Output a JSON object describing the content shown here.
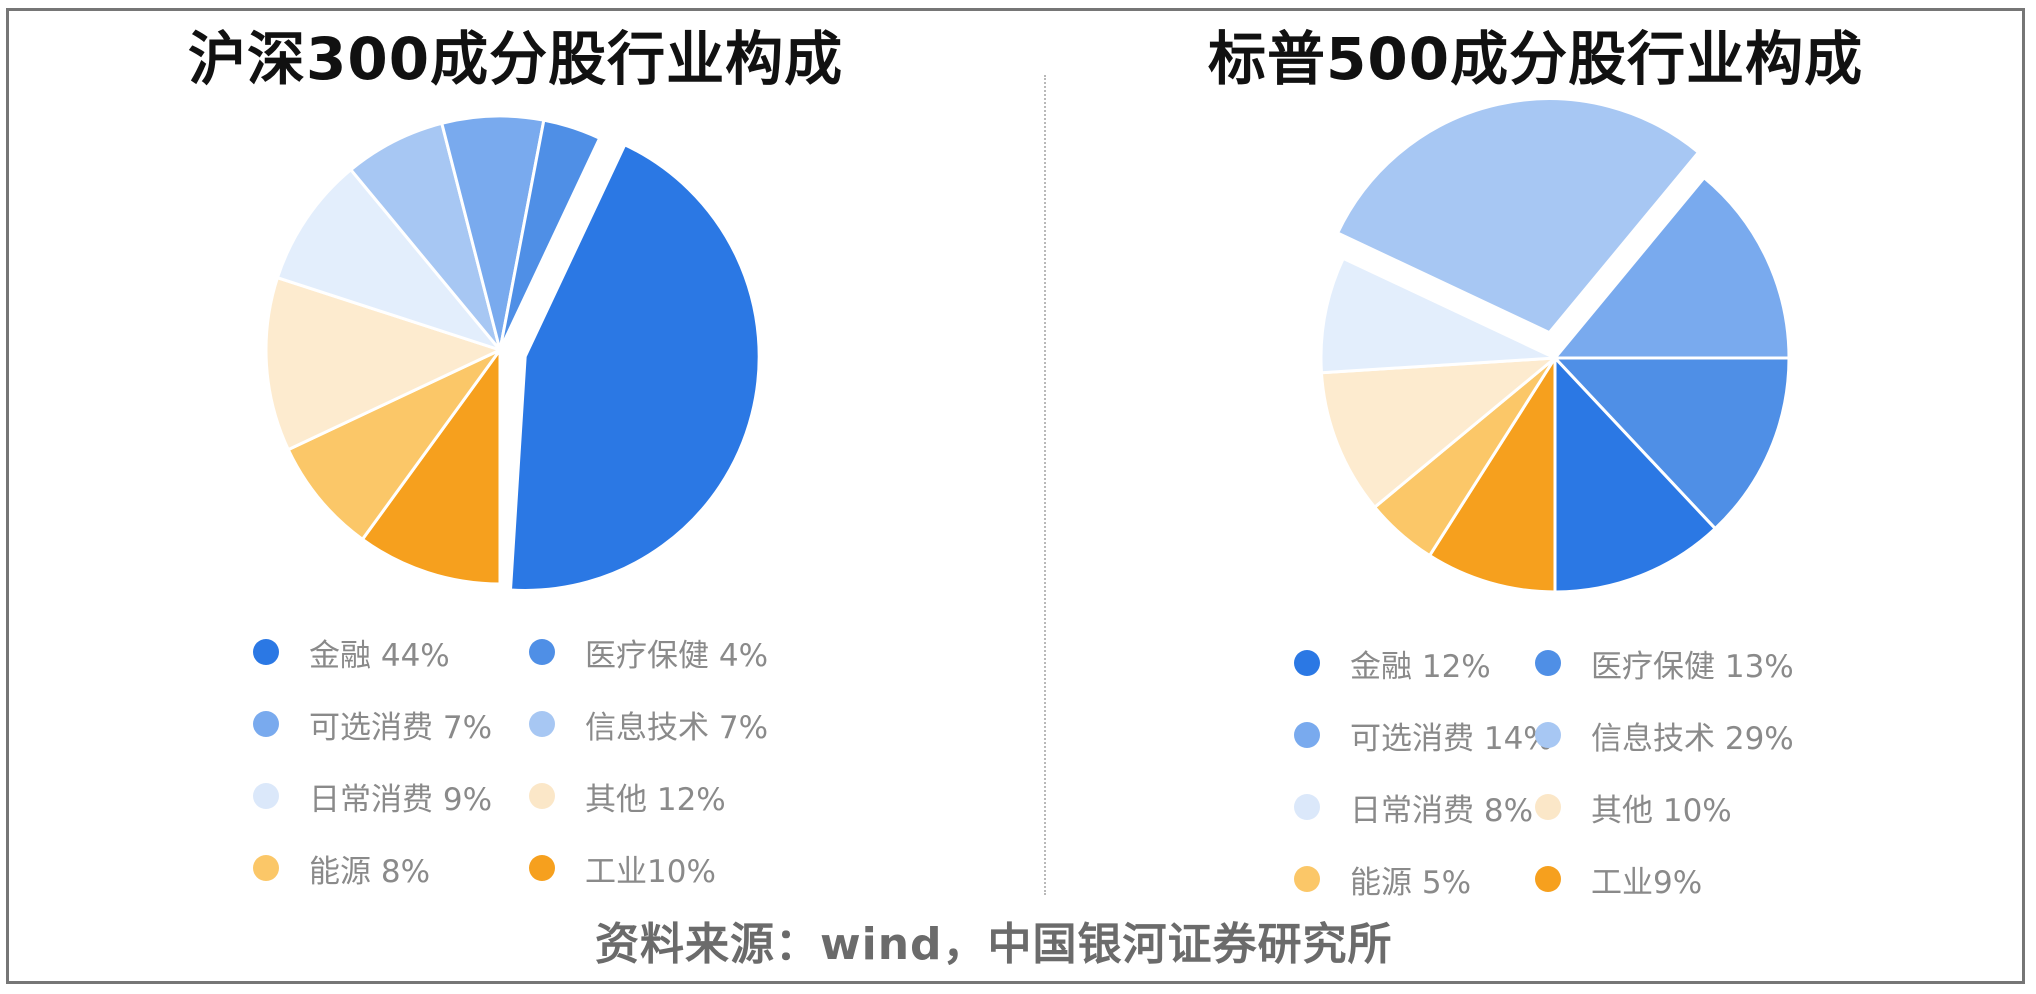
{
  "charts": {
    "left": {
      "title": "沪深300成分股行业构成"
    },
    "right": {
      "title": "标普500成分股行业构成"
    }
  },
  "source": "资料来源：wind，中国银河证券研究所",
  "colors": {
    "金融": "#2b78e4",
    "医疗保健": "#4f8fe6",
    "可选消费": "#79aaee",
    "信息技术": "#a7c7f3",
    "日常消费": "#e3eefc",
    "其他": "#fdebcf",
    "能源": "#fbc768",
    "工业": "#f6a01e"
  },
  "legend_left": [
    {
      "label": "金融 44%",
      "color": "#2b78e4"
    },
    {
      "label": "医疗保健 4%",
      "color": "#4f8fe6"
    },
    {
      "label": "可选消费 7%",
      "color": "#79aaee"
    },
    {
      "label": "信息技术 7%",
      "color": "#a7c7f3"
    },
    {
      "label": "日常消费 9%",
      "color": "#dbe8fa"
    },
    {
      "label": "其他 12%",
      "color": "#fbe7c8"
    },
    {
      "label": "能源 8%",
      "color": "#fbc768"
    },
    {
      "label": "工业10%",
      "color": "#f6a01e"
    }
  ],
  "legend_right": [
    {
      "label": "金融 12%",
      "color": "#2b78e4"
    },
    {
      "label": "医疗保健 13%",
      "color": "#4f8fe6"
    },
    {
      "label": "可选消费 14%",
      "color": "#79aaee"
    },
    {
      "label": "信息技术 29%",
      "color": "#a7c7f3"
    },
    {
      "label": "日常消费 8%",
      "color": "#dbe8fa"
    },
    {
      "label": "其他 10%",
      "color": "#fbe7c8"
    },
    {
      "label": "能源 5%",
      "color": "#fbc768"
    },
    {
      "label": "工业9%",
      "color": "#f6a01e"
    }
  ],
  "chart_data": [
    {
      "type": "pie",
      "title": "沪深300成分股行业构成",
      "categories": [
        "金融",
        "医疗保健",
        "可选消费",
        "信息技术",
        "日常消费",
        "其他",
        "能源",
        "工业"
      ],
      "values": [
        44,
        4,
        7,
        7,
        9,
        12,
        8,
        10
      ],
      "unit": "%",
      "exploded": "金融",
      "legend_position": "bottom"
    },
    {
      "type": "pie",
      "title": "标普500成分股行业构成",
      "categories": [
        "金融",
        "医疗保健",
        "可选消费",
        "信息技术",
        "日常消费",
        "其他",
        "能源",
        "工业"
      ],
      "values": [
        12,
        13,
        14,
        29,
        8,
        10,
        5,
        9
      ],
      "unit": "%",
      "exploded": "信息技术",
      "legend_position": "bottom"
    }
  ]
}
